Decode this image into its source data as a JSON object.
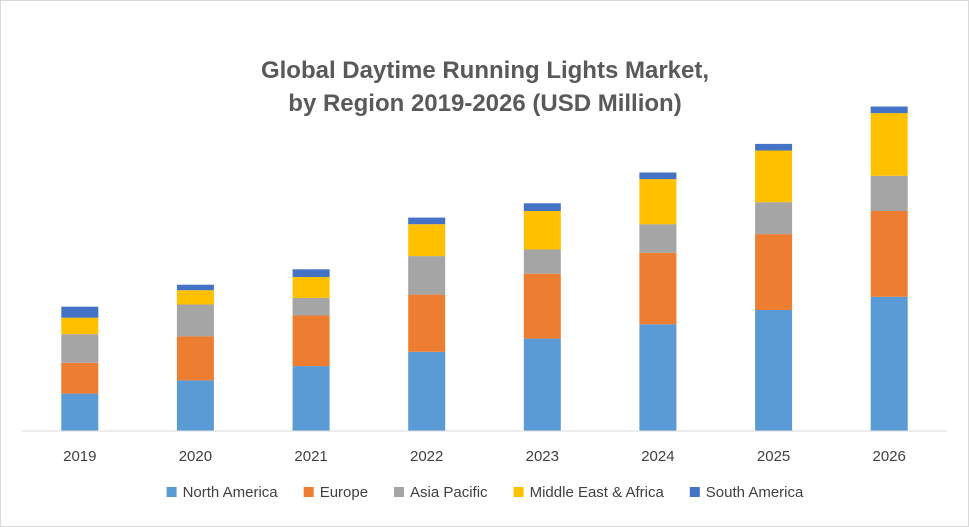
{
  "chart_data": {
    "type": "bar",
    "stacked": true,
    "title": "Global Daytime Running Lights Market,",
    "subtitle": "by Region 2019-2026 (USD Million)",
    "xlabel": "",
    "ylabel": "",
    "grid": false,
    "legend_position": "bottom",
    "categories": [
      "2019",
      "2020",
      "2021",
      "2022",
      "2023",
      "2024",
      "2025",
      "2026"
    ],
    "ylim": [
      0,
      300
    ],
    "series": [
      {
        "name": "North America",
        "color": "#5b9bd5",
        "values": [
          34,
          46,
          59,
          72,
          84,
          97,
          110,
          122
        ]
      },
      {
        "name": "Europe",
        "color": "#ed7d31",
        "values": [
          28,
          40,
          46,
          52,
          59,
          65,
          69,
          78
        ]
      },
      {
        "name": "Asia Pacific",
        "color": "#a5a5a5",
        "values": [
          26,
          29,
          16,
          35,
          22,
          26,
          29,
          32
        ]
      },
      {
        "name": "Middle East & Africa",
        "color": "#ffc000",
        "values": [
          15,
          13,
          19,
          29,
          35,
          41,
          47,
          57
        ]
      },
      {
        "name": "South America",
        "color": "#4472c4",
        "values": [
          10,
          5,
          7,
          6,
          7,
          6,
          6,
          6
        ]
      }
    ]
  }
}
